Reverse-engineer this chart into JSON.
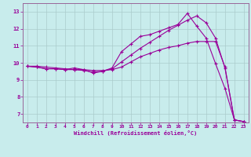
{
  "xlabel": "Windchill (Refroidissement éolien,°C)",
  "bg_color": "#c8ecec",
  "line_color": "#990099",
  "grid_color": "#aacccc",
  "spine_color": "#996699",
  "x_values": [
    0,
    1,
    2,
    3,
    4,
    5,
    6,
    7,
    8,
    9,
    10,
    11,
    12,
    13,
    14,
    15,
    16,
    17,
    18,
    19,
    20,
    21,
    22,
    23
  ],
  "line1": [
    9.8,
    9.8,
    9.75,
    9.7,
    9.65,
    9.6,
    9.6,
    9.55,
    9.55,
    9.6,
    9.75,
    10.05,
    10.35,
    10.55,
    10.75,
    10.9,
    11.0,
    11.15,
    11.25,
    11.25,
    11.25,
    9.75,
    6.65,
    6.55
  ],
  "line2": [
    9.8,
    9.75,
    9.65,
    9.65,
    9.6,
    9.6,
    9.55,
    9.45,
    9.5,
    9.65,
    10.05,
    10.45,
    10.85,
    11.2,
    11.55,
    11.9,
    12.2,
    12.5,
    12.75,
    12.35,
    11.45,
    9.7,
    6.65,
    6.55
  ],
  "line3": [
    9.8,
    9.75,
    9.65,
    9.65,
    9.6,
    9.7,
    9.6,
    9.4,
    9.5,
    9.7,
    10.65,
    11.1,
    11.55,
    11.65,
    11.85,
    12.05,
    12.25,
    12.9,
    12.15,
    11.45,
    9.95,
    8.5,
    6.65,
    6.55
  ],
  "ylim": [
    6.5,
    13.5
  ],
  "xlim": [
    -0.5,
    23.5
  ],
  "yticks": [
    7,
    8,
    9,
    10,
    11,
    12,
    13
  ],
  "xticks": [
    0,
    1,
    2,
    3,
    4,
    5,
    6,
    7,
    8,
    9,
    10,
    11,
    12,
    13,
    14,
    15,
    16,
    17,
    18,
    19,
    20,
    21,
    22,
    23
  ]
}
